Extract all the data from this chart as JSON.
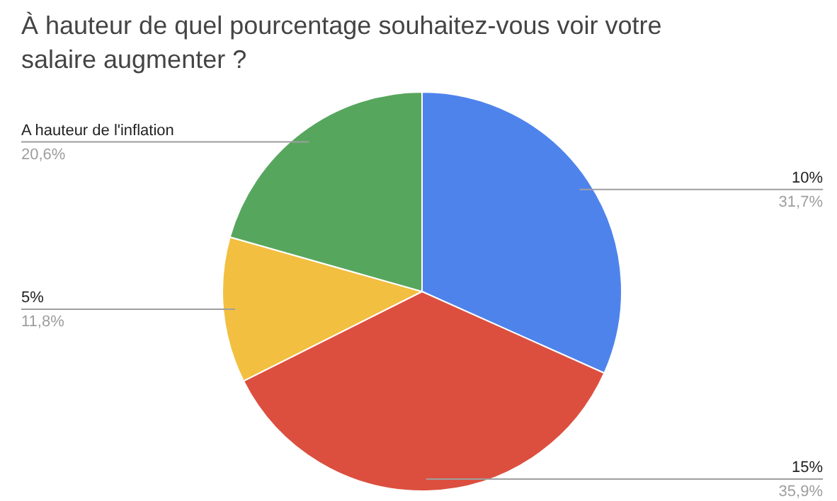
{
  "chart_data": {
    "type": "pie",
    "title": "À hauteur de quel pourcentage souhaitez-vous voir votre salaire augmenter ?",
    "categories": [
      "10%",
      "15%",
      "5%",
      "A hauteur de l'inflation"
    ],
    "values": [
      31.7,
      35.9,
      11.8,
      20.6
    ],
    "colors": [
      "#4f83ec",
      "#dc4f3f",
      "#f2bf41",
      "#57a65d"
    ],
    "value_labels": [
      "31,7%",
      "35,9%",
      "11,8%",
      "20,6%"
    ],
    "legend": false
  }
}
